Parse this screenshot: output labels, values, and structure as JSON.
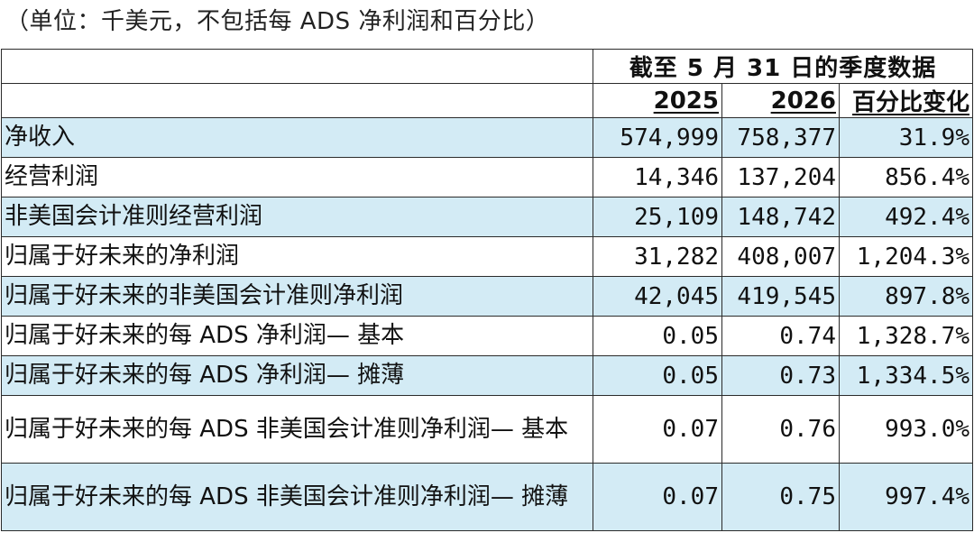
{
  "note": "（单位：千美元，不包括每 ADS 净利润和百分比）",
  "header": {
    "period": "截至 5 月 31 日的季度数据",
    "year1": "2025",
    "year2": "2026",
    "change": "百分比变化"
  },
  "rows": [
    {
      "label": "净收入",
      "v2025": "574,999",
      "v2026": "758,377",
      "change": "31.9%"
    },
    {
      "label": "经营利润",
      "v2025": "14,346",
      "v2026": "137,204",
      "change": "856.4%"
    },
    {
      "label": "非美国会计准则经营利润",
      "v2025": "25,109",
      "v2026": "148,742",
      "change": "492.4%"
    },
    {
      "label": "归属于好未来的净利润",
      "v2025": "31,282",
      "v2026": "408,007",
      "change": "1,204.3%"
    },
    {
      "label": "归属于好未来的非美国会计准则净利润",
      "v2025": "42,045",
      "v2026": "419,545",
      "change": "897.8%"
    },
    {
      "label": "归属于好未来的每 ADS 净利润— 基本",
      "v2025": "0.05",
      "v2026": "0.74",
      "change": "1,328.7%"
    },
    {
      "label": "归属于好未来的每 ADS 净利润— 摊薄",
      "v2025": "0.05",
      "v2026": "0.73",
      "change": "1,334.5%"
    },
    {
      "label": "归属于好未来的每 ADS 非美国会计准则净利润— 基本",
      "v2025": "0.07",
      "v2026": "0.76",
      "change": "993.0%"
    },
    {
      "label": "归属于好未来的每 ADS 非美国会计准则净利润— 摊薄",
      "v2025": "0.07",
      "v2026": "0.75",
      "change": "997.4%"
    }
  ]
}
